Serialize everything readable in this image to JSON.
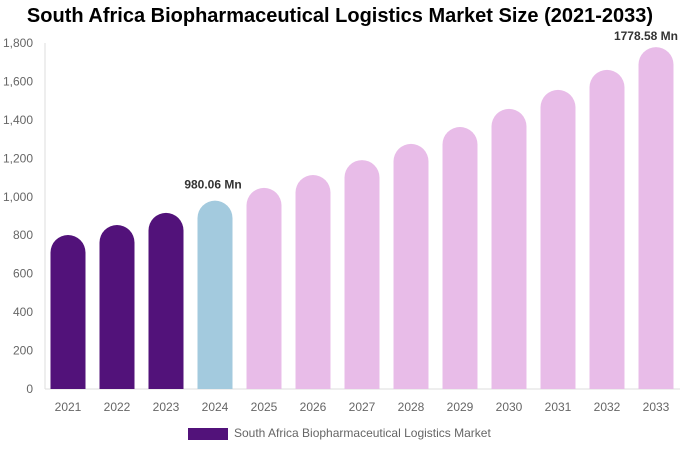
{
  "chart_data": {
    "type": "bar",
    "title": "South Africa Biopharmaceutical Logistics Market Size (2021-2033)",
    "categories": [
      "2021",
      "2022",
      "2023",
      "2024",
      "2025",
      "2026",
      "2027",
      "2028",
      "2029",
      "2030",
      "2031",
      "2032",
      "2033"
    ],
    "series": [
      {
        "name": "South Africa Biopharmaceutical Logistics Market",
        "values": [
          801,
          853,
          916,
          980.06,
          1046,
          1113,
          1191,
          1275,
          1363,
          1457,
          1556,
          1660,
          1778.58
        ]
      }
    ],
    "data_labels": [
      {
        "category": "2024",
        "text": "980.06 Mn"
      },
      {
        "category": "2033",
        "text": "1778.58 Mn"
      }
    ],
    "ylim": [
      0,
      1800
    ],
    "yticks": [
      0,
      200,
      400,
      600,
      800,
      1000,
      1200,
      1400,
      1600,
      1800
    ],
    "ytick_labels": [
      "0",
      "200",
      "400",
      "600",
      "800",
      "1,000",
      "1,200",
      "1,400",
      "1,600",
      "1,800"
    ],
    "grid": false,
    "legend_position": "bottom",
    "colors": {
      "historical": "#52127a",
      "current": "#a3cade",
      "forecast": "#e8bce8"
    }
  }
}
